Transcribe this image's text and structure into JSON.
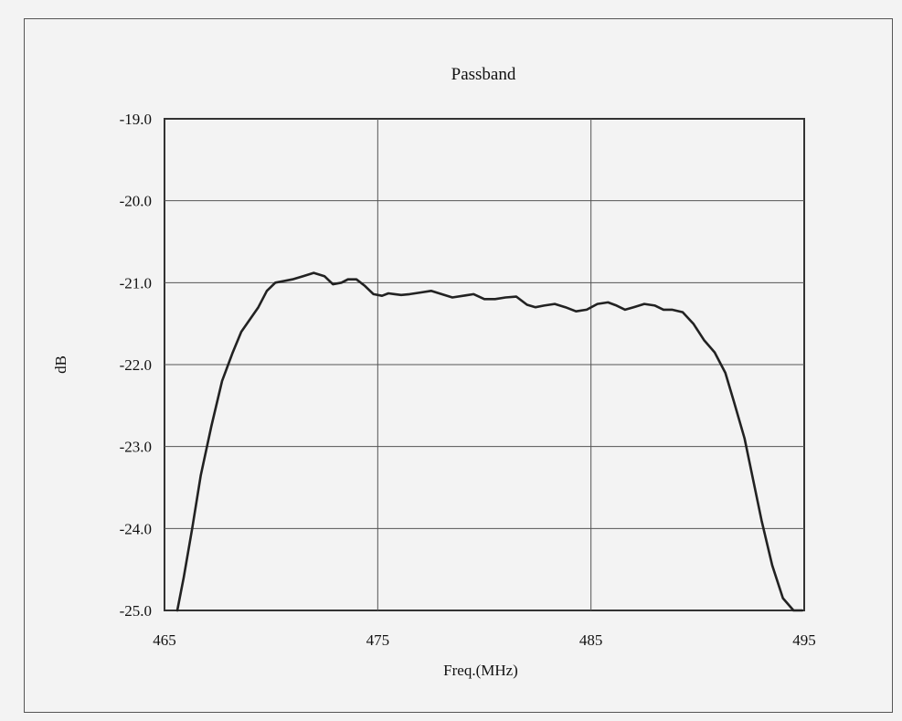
{
  "chart_data": {
    "type": "line",
    "title": "Passband",
    "xlabel": "Freq.(MHz)",
    "ylabel": "dB",
    "xlim": [
      465,
      495
    ],
    "ylim": [
      -25.0,
      -19.0
    ],
    "x_ticks": [
      465,
      475,
      485,
      495
    ],
    "x_tick_labels": [
      "465",
      "475",
      "485",
      "495"
    ],
    "y_ticks": [
      -19.0,
      -20.0,
      -21.0,
      -22.0,
      -23.0,
      -24.0,
      -25.0
    ],
    "y_tick_labels": [
      "-19.0",
      "-20.0",
      "-21.0",
      "-22.0",
      "-23.0",
      "-24.0",
      "-25.0"
    ],
    "grid": true,
    "legend": "none",
    "line_color": "#222222",
    "series": [
      {
        "x": [
          465.6,
          465.9,
          466.3,
          466.7,
          467.2,
          467.7,
          468.2,
          468.6,
          469.0,
          469.4,
          469.8,
          470.2,
          470.6,
          471.0,
          471.5,
          472.0,
          472.5,
          472.9,
          473.3,
          473.6,
          474.0,
          474.4,
          474.8,
          475.2,
          475.5,
          475.8,
          476.1,
          476.5,
          477.0,
          477.5,
          478.0,
          478.5,
          479.0,
          479.5,
          480.0,
          480.5,
          481.0,
          481.5,
          482.0,
          482.4,
          482.8,
          483.3,
          483.8,
          484.3,
          484.8,
          485.3,
          485.8,
          486.2,
          486.6,
          487.0,
          487.5,
          488.0,
          488.4,
          488.8,
          489.3,
          489.8,
          490.3,
          490.8,
          491.3,
          491.7,
          492.2,
          492.6,
          493.0,
          493.5,
          494.0,
          494.5,
          494.9
        ],
        "y": [
          -25.0,
          -24.6,
          -24.0,
          -23.35,
          -22.75,
          -22.2,
          -21.85,
          -21.6,
          -21.45,
          -21.3,
          -21.1,
          -21.0,
          -20.98,
          -20.96,
          -20.92,
          -20.88,
          -20.92,
          -21.02,
          -21.0,
          -20.96,
          -20.96,
          -21.04,
          -21.14,
          -21.16,
          -21.13,
          -21.14,
          -21.15,
          -21.14,
          -21.12,
          -21.1,
          -21.14,
          -21.18,
          -21.16,
          -21.14,
          -21.2,
          -21.2,
          -21.18,
          -21.17,
          -21.27,
          -21.3,
          -21.28,
          -21.26,
          -21.3,
          -21.35,
          -21.33,
          -21.26,
          -21.24,
          -21.28,
          -21.33,
          -21.3,
          -21.26,
          -21.28,
          -21.33,
          -21.33,
          -21.36,
          -21.5,
          -21.7,
          -21.85,
          -22.1,
          -22.45,
          -22.9,
          -23.4,
          -23.9,
          -24.45,
          -24.85,
          -25.0,
          -25.0
        ]
      }
    ]
  }
}
